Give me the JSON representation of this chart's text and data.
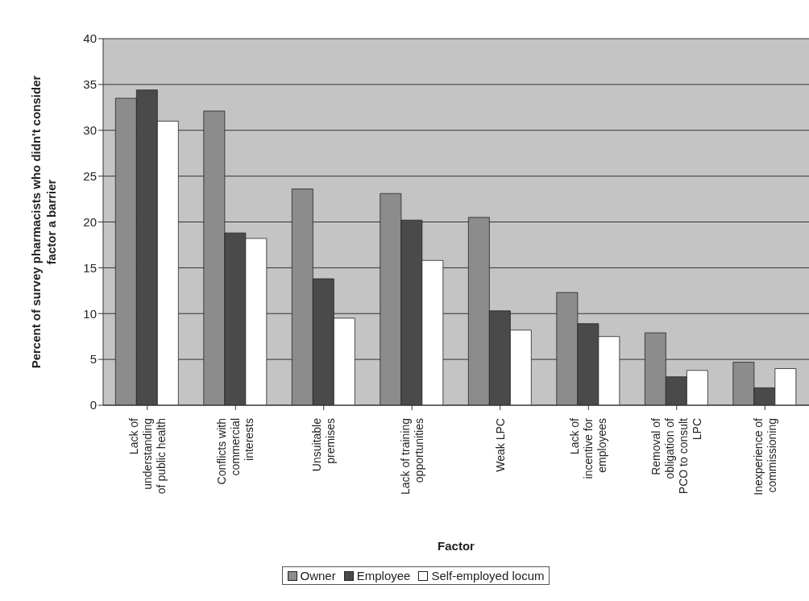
{
  "chart_data": {
    "type": "bar",
    "xlabel": "Factor",
    "ylabel": "Percent of survey pharmacists who didn't consider\nfactor a barrier",
    "categories": [
      "Lack of\nunderstanding\nof public health",
      "Conflicts with\ncommercial\ninterests",
      "Unsuitable\npremises",
      "Lack of training\nopportunities",
      "Weak LPC",
      "Lack of\nincentive for\nemployees",
      "Removal of\nobligation of\nPCO to consult\nLPC",
      "Inexperience of\ncommissioning"
    ],
    "series": [
      {
        "name": "Owner",
        "color": "#8c8c8c",
        "values": [
          33.5,
          32.1,
          23.6,
          23.1,
          20.5,
          12.3,
          7.9,
          4.7
        ]
      },
      {
        "name": "Employee",
        "color": "#4a4a4a",
        "values": [
          34.4,
          18.8,
          13.8,
          20.2,
          10.3,
          8.9,
          3.1,
          1.9
        ]
      },
      {
        "name": "Self-employed locum",
        "color": "#ffffff",
        "values": [
          31.0,
          18.2,
          9.5,
          15.8,
          8.2,
          7.5,
          3.8,
          4.0
        ]
      }
    ],
    "ylim": [
      0,
      40
    ],
    "yticks": [
      0,
      5,
      10,
      15,
      20,
      25,
      30,
      35,
      40
    ],
    "grid": "y",
    "legend": "bottom"
  }
}
